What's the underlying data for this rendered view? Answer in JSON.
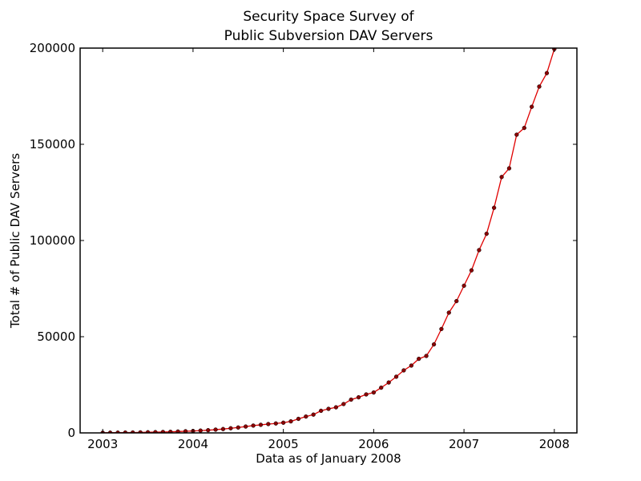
{
  "chart_data": {
    "type": "line",
    "title": [
      "Security Space Survey of",
      "Public Subversion DAV Servers"
    ],
    "xlabel": "Data as of January 2008",
    "ylabel": "Total # of Public DAV Servers",
    "xlim": [
      2002.75,
      2008.25
    ],
    "ylim": [
      0,
      200000
    ],
    "xticks": [
      2003,
      2004,
      2005,
      2006,
      2007,
      2008
    ],
    "xtick_labels": [
      "2003",
      "2004",
      "2005",
      "2006",
      "2007",
      "2008"
    ],
    "yticks": [
      0,
      50000,
      100000,
      150000,
      200000
    ],
    "ytick_labels": [
      "0",
      "50000",
      "100000",
      "150000",
      "200000"
    ],
    "grid": false,
    "series": [
      {
        "color": "#e00000",
        "marker_color": "#8b0000",
        "x": [
          2003.0,
          2003.083,
          2003.167,
          2003.25,
          2003.333,
          2003.417,
          2003.5,
          2003.583,
          2003.667,
          2003.75,
          2003.833,
          2003.917,
          2004.0,
          2004.083,
          2004.167,
          2004.25,
          2004.333,
          2004.417,
          2004.5,
          2004.583,
          2004.667,
          2004.75,
          2004.833,
          2004.917,
          2005.0,
          2005.083,
          2005.167,
          2005.25,
          2005.333,
          2005.417,
          2005.5,
          2005.583,
          2005.667,
          2005.75,
          2005.833,
          2005.917,
          2006.0,
          2006.083,
          2006.167,
          2006.25,
          2006.333,
          2006.417,
          2006.5,
          2006.583,
          2006.667,
          2006.75,
          2006.833,
          2006.917,
          2007.0,
          2007.083,
          2007.167,
          2007.25,
          2007.333,
          2007.417,
          2007.5,
          2007.583,
          2007.667,
          2007.75,
          2007.833,
          2007.917,
          2008.0
        ],
        "y": [
          100,
          120,
          150,
          180,
          220,
          270,
          330,
          400,
          480,
          570,
          700,
          850,
          1000,
          1200,
          1400,
          1700,
          2000,
          2400,
          2800,
          3300,
          3800,
          4200,
          4600,
          4900,
          5300,
          6000,
          7300,
          8500,
          9500,
          11500,
          12500,
          13300,
          15000,
          17300,
          18500,
          20000,
          21000,
          23500,
          26200,
          29200,
          32500,
          35000,
          38500,
          40000,
          46000,
          54000,
          62500,
          68500,
          76500,
          84500,
          95000,
          103500,
          117000,
          133000,
          137500,
          155000,
          158500,
          169500,
          180000,
          187000,
          199500
        ]
      }
    ]
  }
}
